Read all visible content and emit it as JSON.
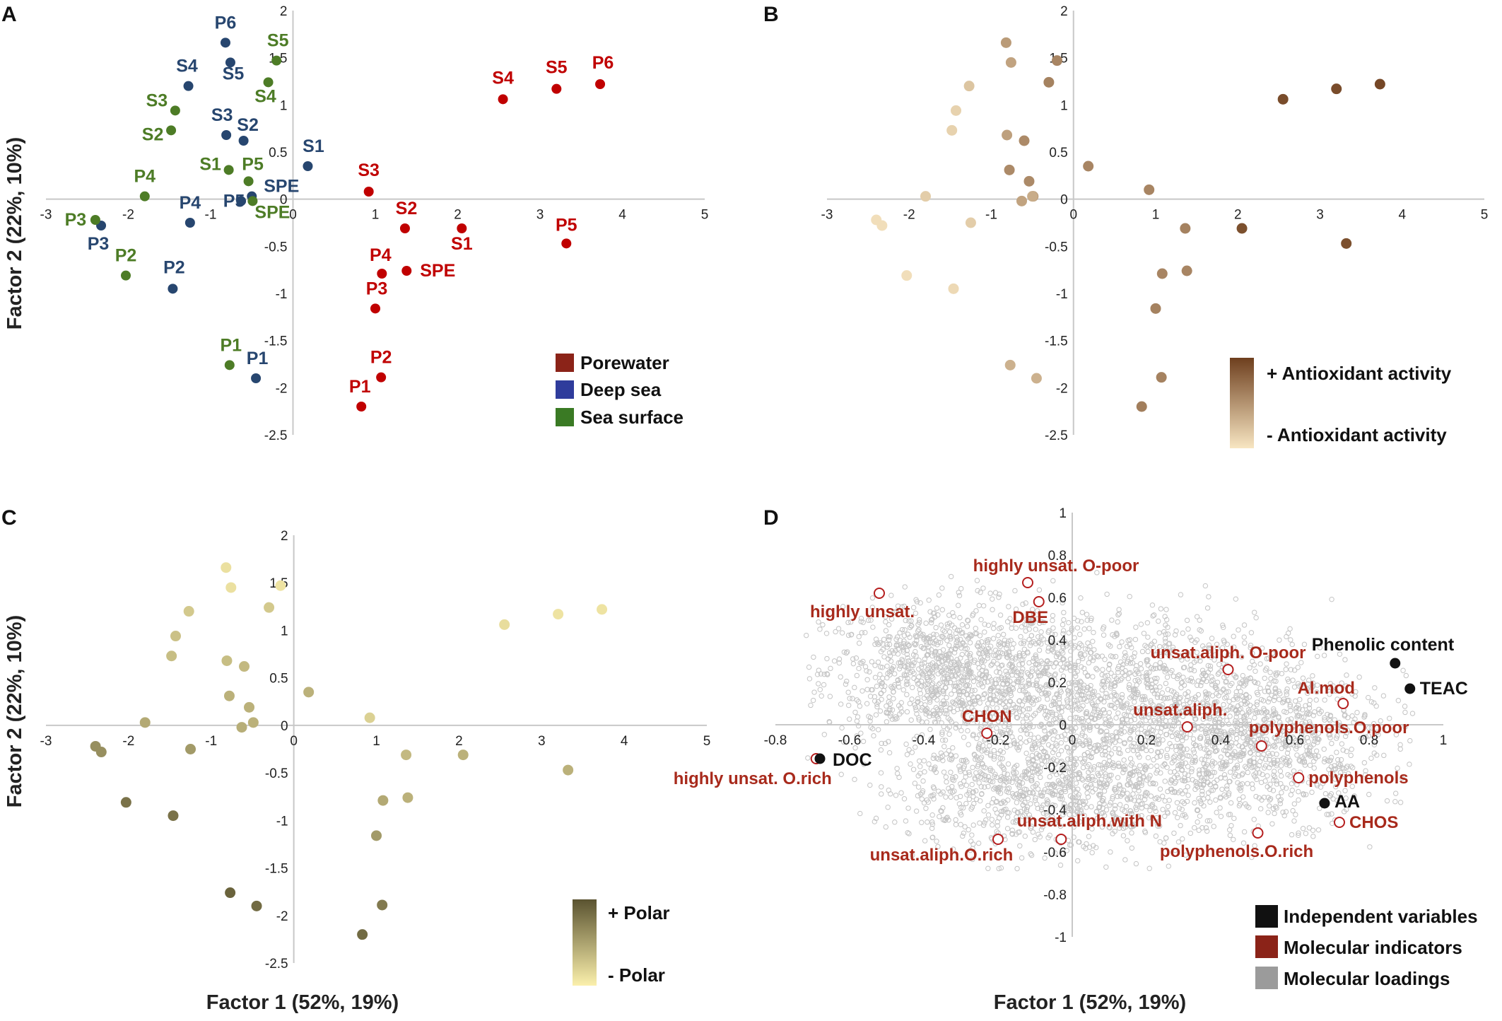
{
  "colors": {
    "axis": "#c8c8c8",
    "tick_text": "#222222",
    "porewater": "#c00000",
    "porewater_legend": "#8b2318",
    "deep_sea": "#27466f",
    "deep_sea_legend": "#2f3c9c",
    "sea_surface": "#4d7c26",
    "sea_surface_legend": "#3a7a24",
    "indicator_text": "#a82a1c",
    "independent": "#111111",
    "loading": "#c4c4c4",
    "loading_legend": "#9b9b9b",
    "antiox_high": "#6e3f1e",
    "antiox_low": "#f8e6c2",
    "polar_high": "#5a5330",
    "polar_low": "#fbf0ac"
  },
  "y_axis_title": "Factor 2 (22%, 10%)",
  "x_axis_title": "Factor 1 (52%, 19%)",
  "chart_data": [
    {
      "panel": "A",
      "type": "scatter",
      "title": "",
      "xlabel": "",
      "ylabel": "Factor 2 (22%, 10%)",
      "xlim": [
        -3,
        5
      ],
      "ylim": [
        -2.5,
        2
      ],
      "xticks": [
        "-3",
        "-2",
        "-1",
        "0",
        "1",
        "2",
        "3",
        "4",
        "5"
      ],
      "yticks": [
        "2",
        "1.5",
        "1",
        "0.5",
        "0",
        "-0.5",
        "-1",
        "-1.5",
        "-2",
        "-2.5"
      ],
      "legend": [
        "Porewater",
        "Deep sea",
        "Sea surface"
      ],
      "legend_position": "bottom-right",
      "series": [
        {
          "name": "Porewater",
          "points": [
            {
              "label": "S4",
              "x": 2.55,
              "y": 1.06
            },
            {
              "label": "S5",
              "x": 3.2,
              "y": 1.17
            },
            {
              "label": "P6",
              "x": 3.73,
              "y": 1.22
            },
            {
              "label": "S3",
              "x": 0.92,
              "y": 0.08
            },
            {
              "label": "S2",
              "x": 1.36,
              "y": -0.31
            },
            {
              "label": "S1",
              "x": 2.05,
              "y": -0.31
            },
            {
              "label": "P5",
              "x": 3.32,
              "y": -0.47
            },
            {
              "label": "P4",
              "x": 1.08,
              "y": -0.79
            },
            {
              "label": "SPE",
              "x": 1.38,
              "y": -0.76
            },
            {
              "label": "P3",
              "x": 1.0,
              "y": -1.16
            },
            {
              "label": "P2",
              "x": 1.07,
              "y": -1.89
            },
            {
              "label": "P1",
              "x": 0.83,
              "y": -2.2
            }
          ]
        },
        {
          "name": "Deep sea",
          "points": [
            {
              "label": "P6",
              "x": -0.82,
              "y": 1.66
            },
            {
              "label": "S5",
              "x": -0.76,
              "y": 1.45
            },
            {
              "label": "S4",
              "x": -1.27,
              "y": 1.2
            },
            {
              "label": "S3",
              "x": -0.81,
              "y": 0.68
            },
            {
              "label": "S2",
              "x": -0.6,
              "y": 0.62
            },
            {
              "label": "S1",
              "x": 0.18,
              "y": 0.35
            },
            {
              "label": "SPE",
              "x": -0.5,
              "y": 0.03
            },
            {
              "label": "P5",
              "x": -0.63,
              "y": -0.02
            },
            {
              "label": "P4",
              "x": -1.25,
              "y": -0.25
            },
            {
              "label": "P3",
              "x": -2.33,
              "y": -0.28
            },
            {
              "label": "P2",
              "x": -1.46,
              "y": -0.95
            },
            {
              "label": "P1",
              "x": -0.45,
              "y": -1.9
            }
          ]
        },
        {
          "name": "Sea surface",
          "points": [
            {
              "label": "S5",
              "x": -0.2,
              "y": 1.47
            },
            {
              "label": "S4",
              "x": -0.3,
              "y": 1.24
            },
            {
              "label": "S3",
              "x": -1.43,
              "y": 0.94
            },
            {
              "label": "S2",
              "x": -1.48,
              "y": 0.73
            },
            {
              "label": "S1",
              "x": -0.78,
              "y": 0.31
            },
            {
              "label": "P5",
              "x": -0.54,
              "y": 0.19
            },
            {
              "label": "P4",
              "x": -1.8,
              "y": 0.03
            },
            {
              "label": "SPE",
              "x": -0.49,
              "y": -0.02
            },
            {
              "label": "P3",
              "x": -2.4,
              "y": -0.22
            },
            {
              "label": "P2",
              "x": -2.03,
              "y": -0.81
            },
            {
              "label": "P1",
              "x": -0.77,
              "y": -1.76
            }
          ]
        }
      ]
    },
    {
      "panel": "B",
      "type": "scatter",
      "title": "",
      "xlim": [
        -3,
        5
      ],
      "ylim": [
        -2.5,
        2
      ],
      "xticks": [
        "-3",
        "-2",
        "-1",
        "0",
        "1",
        "2",
        "3",
        "4",
        "5"
      ],
      "yticks": [
        "2",
        "1.5",
        "1",
        "0.5",
        "0",
        "-0.5",
        "-1",
        "-1.5",
        "-2",
        "-2.5"
      ],
      "color_scale": {
        "high": "+ Antioxidant activity",
        "low": "- Antioxidant activity"
      },
      "points": [
        {
          "x": -0.82,
          "y": 1.66,
          "v": 0.45
        },
        {
          "x": -0.76,
          "y": 1.45,
          "v": 0.4
        },
        {
          "x": -0.2,
          "y": 1.47,
          "v": 0.58
        },
        {
          "x": -0.3,
          "y": 1.24,
          "v": 0.6
        },
        {
          "x": -1.27,
          "y": 1.2,
          "v": 0.2
        },
        {
          "x": -1.43,
          "y": 0.94,
          "v": 0.12
        },
        {
          "x": -1.48,
          "y": 0.73,
          "v": 0.12
        },
        {
          "x": -0.81,
          "y": 0.68,
          "v": 0.42
        },
        {
          "x": -0.6,
          "y": 0.62,
          "v": 0.55
        },
        {
          "x": 0.18,
          "y": 0.35,
          "v": 0.58
        },
        {
          "x": -0.78,
          "y": 0.31,
          "v": 0.55
        },
        {
          "x": -0.54,
          "y": 0.19,
          "v": 0.55
        },
        {
          "x": -0.49,
          "y": 0.03,
          "v": 0.45
        },
        {
          "x": -0.5,
          "y": 0.03,
          "v": 0.35
        },
        {
          "x": -0.63,
          "y": -0.02,
          "v": 0.4
        },
        {
          "x": -1.8,
          "y": 0.03,
          "v": 0.15
        },
        {
          "x": -2.4,
          "y": -0.22,
          "v": 0.05
        },
        {
          "x": -2.33,
          "y": -0.28,
          "v": 0.05
        },
        {
          "x": -1.25,
          "y": -0.25,
          "v": 0.15
        },
        {
          "x": -2.03,
          "y": -0.81,
          "v": 0.05
        },
        {
          "x": -1.46,
          "y": -0.95,
          "v": 0.08
        },
        {
          "x": -0.77,
          "y": -1.76,
          "v": 0.32
        },
        {
          "x": -0.45,
          "y": -1.9,
          "v": 0.32
        },
        {
          "x": 0.92,
          "y": 0.1,
          "v": 0.58
        },
        {
          "x": 1.36,
          "y": -0.31,
          "v": 0.6
        },
        {
          "x": 1.08,
          "y": -0.79,
          "v": 0.58
        },
        {
          "x": 1.38,
          "y": -0.76,
          "v": 0.58
        },
        {
          "x": 1.0,
          "y": -1.16,
          "v": 0.6
        },
        {
          "x": 1.07,
          "y": -1.89,
          "v": 0.6
        },
        {
          "x": 0.83,
          "y": -2.2,
          "v": 0.62
        },
        {
          "x": 2.05,
          "y": -0.31,
          "v": 0.9
        },
        {
          "x": 3.32,
          "y": -0.47,
          "v": 0.9
        },
        {
          "x": 2.55,
          "y": 1.06,
          "v": 0.92
        },
        {
          "x": 3.2,
          "y": 1.17,
          "v": 0.92
        },
        {
          "x": 3.73,
          "y": 1.22,
          "v": 0.95
        }
      ]
    },
    {
      "panel": "C",
      "type": "scatter",
      "title": "",
      "xlabel": "Factor 1 (52%, 19%)",
      "ylabel": "Factor 2 (22%, 10%)",
      "xlim": [
        -3,
        5
      ],
      "ylim": [
        -2.5,
        2
      ],
      "xticks": [
        "-3",
        "-2",
        "-1",
        "0",
        "1",
        "2",
        "3",
        "4",
        "5"
      ],
      "yticks": [
        "2",
        "1.5",
        "1",
        "0.5",
        "0",
        "-0.5",
        "-1",
        "-1.5",
        "-2",
        "-2.5"
      ],
      "color_scale": {
        "high": "+ Polar",
        "low": "- Polar"
      },
      "points": [
        {
          "x": -0.82,
          "y": 1.66,
          "v": 0.1
        },
        {
          "x": -0.76,
          "y": 1.45,
          "v": 0.1
        },
        {
          "x": -0.16,
          "y": 1.47,
          "v": 0.08
        },
        {
          "x": -0.3,
          "y": 1.24,
          "v": 0.25
        },
        {
          "x": -1.27,
          "y": 1.2,
          "v": 0.25
        },
        {
          "x": -1.43,
          "y": 0.94,
          "v": 0.3
        },
        {
          "x": -1.48,
          "y": 0.73,
          "v": 0.32
        },
        {
          "x": -0.81,
          "y": 0.68,
          "v": 0.32
        },
        {
          "x": -0.6,
          "y": 0.62,
          "v": 0.35
        },
        {
          "x": 0.18,
          "y": 0.35,
          "v": 0.4
        },
        {
          "x": -0.78,
          "y": 0.31,
          "v": 0.4
        },
        {
          "x": -0.54,
          "y": 0.19,
          "v": 0.4
        },
        {
          "x": -0.49,
          "y": 0.03,
          "v": 0.4
        },
        {
          "x": -0.63,
          "y": -0.02,
          "v": 0.42
        },
        {
          "x": -1.8,
          "y": 0.03,
          "v": 0.45
        },
        {
          "x": -2.4,
          "y": -0.22,
          "v": 0.62
        },
        {
          "x": -2.33,
          "y": -0.28,
          "v": 0.62
        },
        {
          "x": -1.25,
          "y": -0.25,
          "v": 0.55
        },
        {
          "x": -2.03,
          "y": -0.81,
          "v": 0.8
        },
        {
          "x": -1.46,
          "y": -0.95,
          "v": 0.8
        },
        {
          "x": -0.77,
          "y": -1.76,
          "v": 0.9
        },
        {
          "x": -0.45,
          "y": -1.9,
          "v": 0.85
        },
        {
          "x": 0.92,
          "y": 0.08,
          "v": 0.2
        },
        {
          "x": 1.36,
          "y": -0.31,
          "v": 0.35
        },
        {
          "x": 2.05,
          "y": -0.31,
          "v": 0.4
        },
        {
          "x": 3.32,
          "y": -0.47,
          "v": 0.4
        },
        {
          "x": 1.08,
          "y": -0.79,
          "v": 0.45
        },
        {
          "x": 1.38,
          "y": -0.76,
          "v": 0.4
        },
        {
          "x": 1.0,
          "y": -1.16,
          "v": 0.55
        },
        {
          "x": 1.07,
          "y": -1.89,
          "v": 0.75
        },
        {
          "x": 0.83,
          "y": -2.2,
          "v": 0.85
        },
        {
          "x": 2.55,
          "y": 1.06,
          "v": 0.12
        },
        {
          "x": 3.2,
          "y": 1.17,
          "v": 0.08
        },
        {
          "x": 3.73,
          "y": 1.22,
          "v": 0.08
        }
      ]
    },
    {
      "panel": "D",
      "type": "scatter",
      "title": "",
      "xlabel": "Factor 1 (52%, 19%)",
      "xlim": [
        -0.8,
        1
      ],
      "ylim": [
        -1,
        1
      ],
      "xticks": [
        "-0.8",
        "-0.6",
        "-0.4",
        "-0.2",
        "0",
        "0.2",
        "0.4",
        "0.6",
        "0.8",
        "1"
      ],
      "yticks": [
        "1",
        "0.8",
        "0.6",
        "0.4",
        "0.2",
        "0",
        "-0.2",
        "-0.4",
        "-0.6",
        "-0.8",
        "-1"
      ],
      "legend": [
        "Independent variables",
        "Molecular indicators",
        "Molecular loadings"
      ],
      "legend_position": "bottom-right",
      "loadings_note": "thousands of grey open-circle molecular loadings forming an elongated cloud",
      "independent_variables": [
        {
          "label": "DOC",
          "x": -0.68,
          "y": -0.16
        },
        {
          "label": "Phenolic content",
          "x": 0.87,
          "y": 0.29
        },
        {
          "label": "TEAC",
          "x": 0.91,
          "y": 0.17
        },
        {
          "label": "AA",
          "x": 0.68,
          "y": -0.37
        }
      ],
      "molecular_indicators": [
        {
          "label": "highly unsat. O-poor",
          "x": -0.12,
          "y": 0.67
        },
        {
          "label": "highly unsat.",
          "x": -0.52,
          "y": 0.62
        },
        {
          "label": "DBE",
          "x": -0.09,
          "y": 0.58
        },
        {
          "label": "unsat.aliph. O-poor",
          "x": 0.42,
          "y": 0.26
        },
        {
          "label": "Al.mod",
          "x": 0.73,
          "y": 0.1
        },
        {
          "label": "CHON",
          "x": -0.23,
          "y": -0.04
        },
        {
          "label": "unsat.aliph.",
          "x": 0.31,
          "y": -0.01
        },
        {
          "label": "polyphenols.O.poor",
          "x": 0.51,
          "y": -0.1
        },
        {
          "label": "highly unsat. O.rich",
          "x": -0.69,
          "y": -0.16
        },
        {
          "label": "polyphenols",
          "x": 0.61,
          "y": -0.25
        },
        {
          "label": "CHOS",
          "x": 0.72,
          "y": -0.46
        },
        {
          "label": "unsat.aliph.with N",
          "x": -0.03,
          "y": -0.54
        },
        {
          "label": "polyphenols.O.rich",
          "x": 0.5,
          "y": -0.51
        },
        {
          "label": "unsat.aliph.O.rich",
          "x": -0.2,
          "y": -0.54
        }
      ]
    }
  ],
  "panel_letters": [
    "A",
    "B",
    "C",
    "D"
  ]
}
